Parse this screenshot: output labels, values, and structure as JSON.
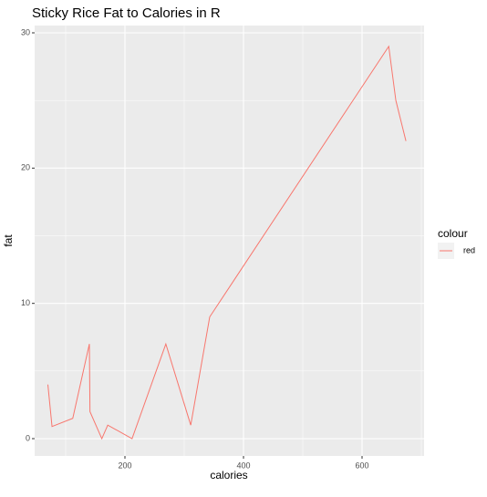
{
  "chart_data": {
    "type": "line",
    "title": "Sticky Rice Fat to Calories in R",
    "x_label": "calories",
    "y_label": "fat",
    "legend_title": "colour",
    "series": [
      {
        "name": "red",
        "color": "#F8766D",
        "x": [
          70,
          77,
          112,
          140,
          141,
          161,
          171,
          212,
          269,
          311,
          343,
          645,
          657,
          674
        ],
        "values": [
          4,
          0.9,
          1.5,
          7,
          2,
          0,
          1,
          0,
          7,
          1,
          9,
          29,
          25,
          22
        ]
      }
    ],
    "xlim": [
      47.7,
      704.6
    ],
    "ylim": [
      -1.28,
      30.54
    ],
    "xticks": [
      200,
      400,
      600
    ],
    "yticks": [
      0,
      10,
      20,
      30
    ],
    "xminor": [
      100,
      300,
      500,
      700
    ],
    "yminor": [
      5,
      15,
      25
    ],
    "grid": true,
    "legend": "right"
  }
}
